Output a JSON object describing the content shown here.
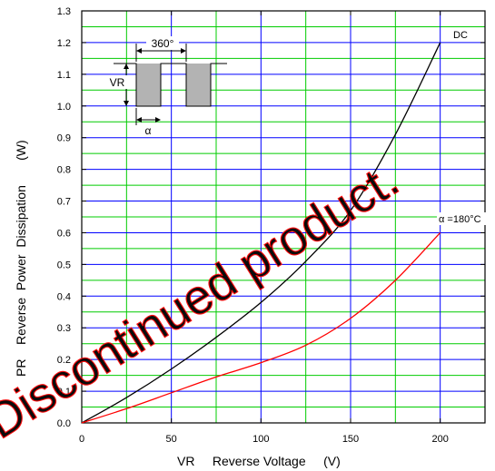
{
  "chart_data": {
    "type": "line",
    "title": "",
    "xlabel": "VR     Reverse Voltage     (V)",
    "ylabel": "PR    Reverse  Power  Dissipation       (W)",
    "xlim": [
      0,
      225
    ],
    "ylim": [
      0,
      1.3
    ],
    "x_ticks": [
      0,
      50,
      100,
      150,
      200
    ],
    "y_ticks": [
      0.0,
      0.1,
      0.2,
      0.3,
      0.4,
      0.5,
      0.6,
      0.7,
      0.8,
      0.9,
      1.0,
      1.1,
      1.2,
      1.3
    ],
    "x_tick_labels": [
      "0",
      "50",
      "100",
      "150",
      "200"
    ],
    "y_tick_labels": [
      "0.0",
      "0.1",
      "0.2",
      "0.3",
      "0.4",
      "0.5",
      "0.6",
      "0.7",
      "0.8",
      "0.9",
      "1.0",
      "1.1",
      "1.2",
      "1.3"
    ],
    "grid": true,
    "series": [
      {
        "name": "DC",
        "color": "#000000",
        "x": [
          0,
          25,
          50,
          75,
          100,
          125,
          150,
          175,
          200
        ],
        "y": [
          0,
          0.08,
          0.17,
          0.27,
          0.38,
          0.51,
          0.67,
          0.91,
          1.2
        ]
      },
      {
        "name": "α =180°C",
        "color": "#ff0000",
        "x": [
          0,
          25,
          50,
          75,
          100,
          125,
          150,
          175,
          200
        ],
        "y": [
          0,
          0.045,
          0.095,
          0.145,
          0.19,
          0.245,
          0.33,
          0.45,
          0.6
        ]
      }
    ],
    "inset": {
      "period_label": "360°",
      "voltage_label": "VR",
      "angle_label": "α"
    },
    "watermark": "Discontinued product."
  },
  "colors": {
    "grid_green": "#00cc00",
    "grid_blue": "#0000ff",
    "axis": "#000000",
    "inset_fill": "#b3b3b3",
    "watermark": "#ff0000"
  }
}
